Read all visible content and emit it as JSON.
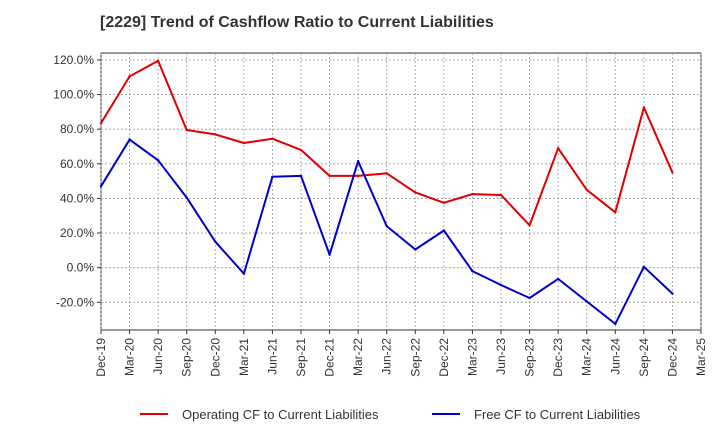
{
  "title": "[2229]  Trend of Cashflow Ratio to Current Liabilities",
  "chart_data": {
    "type": "line",
    "title": "[2229]  Trend of Cashflow Ratio to Current Liabilities",
    "xlabel": "",
    "ylabel": "",
    "categories": [
      "Dec-19",
      "Mar-20",
      "Jun-20",
      "Sep-20",
      "Dec-20",
      "Mar-21",
      "Jun-21",
      "Sep-21",
      "Dec-21",
      "Mar-22",
      "Jun-22",
      "Sep-22",
      "Dec-22",
      "Mar-23",
      "Jun-23",
      "Sep-23",
      "Dec-23",
      "Mar-24",
      "Jun-24",
      "Sep-24",
      "Dec-24",
      "Mar-25"
    ],
    "y_ticks": [
      120.0,
      100.0,
      80.0,
      60.0,
      40.0,
      20.0,
      0.0,
      -20.0
    ],
    "y_tick_labels": [
      "120.0%",
      "100.0%",
      "80.0%",
      "60.0%",
      "40.0%",
      "20.0%",
      "0.0%",
      "-20.0%"
    ],
    "ylim": [
      -36,
      124
    ],
    "grid": true,
    "legend_position": "bottom",
    "series": [
      {
        "name": "Operating CF to Current Liabilities",
        "color": "#e00000",
        "values": [
          83.5,
          110.5,
          119.5,
          79.5,
          77.0,
          72.0,
          74.5,
          68.0,
          53.0,
          53.0,
          54.5,
          43.5,
          37.5,
          42.5,
          42.0,
          24.5,
          69.0,
          45.0,
          32.0,
          92.5,
          55.0,
          null
        ]
      },
      {
        "name": "Free CF to Current Liabilities",
        "color": "#0000cc",
        "values": [
          47.0,
          74.0,
          62.0,
          40.5,
          15.0,
          -3.5,
          52.5,
          53.0,
          7.5,
          61.5,
          24.0,
          10.5,
          21.5,
          -2.0,
          -10.0,
          -17.5,
          -6.5,
          -19.5,
          -32.5,
          0.5,
          -15.0,
          null
        ]
      }
    ]
  }
}
